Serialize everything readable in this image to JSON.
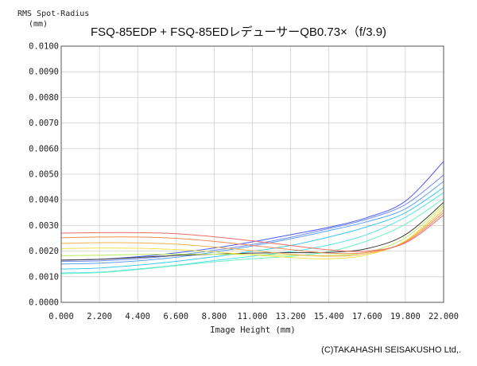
{
  "chart_data": {
    "type": "line",
    "title": "FSQ-85EDP + FSQ-85EDレデューサーQB0.73×（f/3.9)",
    "ylabel_line1": "RMS Spot-Radius",
    "ylabel_line2": "(mm)",
    "xlabel": "Image Height (mm)",
    "credit": "(C)TAKAHASHI SEISAKUSHO Ltd,.",
    "xlim": [
      0,
      22
    ],
    "ylim": [
      0,
      0.01
    ],
    "grid": true,
    "x_ticks": [
      "0.000",
      "2.200",
      "4.400",
      "6.600",
      "8.800",
      "11.000",
      "13.200",
      "15.400",
      "17.600",
      "19.800",
      "22.000"
    ],
    "y_ticks": [
      "0.0000",
      "0.0010",
      "0.0020",
      "0.0030",
      "0.0040",
      "0.0050",
      "0.0060",
      "0.0070",
      "0.0080",
      "0.0090",
      "0.0100"
    ],
    "x": [
      0,
      2.2,
      4.4,
      6.6,
      8.8,
      11,
      13.2,
      15.4,
      17.6,
      19.8,
      22
    ],
    "series": [
      {
        "color": "#4c5cf0",
        "values": [
          0.00165,
          0.00168,
          0.00178,
          0.00193,
          0.00212,
          0.00236,
          0.00264,
          0.00293,
          0.00331,
          0.00395,
          0.0055
        ]
      },
      {
        "color": "#6f8af6",
        "values": [
          0.0016,
          0.00162,
          0.0017,
          0.00184,
          0.00203,
          0.00226,
          0.00254,
          0.00288,
          0.00325,
          0.00382,
          0.00497
        ]
      },
      {
        "color": "#5aa0f5",
        "values": [
          0.0015,
          0.00153,
          0.00162,
          0.00176,
          0.00196,
          0.0022,
          0.00248,
          0.0028,
          0.00315,
          0.00365,
          0.00472
        ]
      },
      {
        "color": "#3cc9ef",
        "values": [
          0.0013,
          0.00134,
          0.00145,
          0.0016,
          0.00178,
          0.00199,
          0.00222,
          0.00255,
          0.00295,
          0.0035,
          0.00448
        ]
      },
      {
        "color": "#52e3ea",
        "values": [
          0.00115,
          0.00118,
          0.0013,
          0.00145,
          0.00163,
          0.0018,
          0.00198,
          0.00224,
          0.00265,
          0.00332,
          0.00428
        ]
      },
      {
        "color": "#6ef0c0",
        "values": [
          0.00112,
          0.00116,
          0.00128,
          0.00143,
          0.00158,
          0.0017,
          0.0018,
          0.00198,
          0.0024,
          0.00305,
          0.00405
        ]
      },
      {
        "color": "#3a3a3a",
        "values": [
          0.00165,
          0.00168,
          0.00175,
          0.00183,
          0.00188,
          0.00192,
          0.00194,
          0.00195,
          0.0021,
          0.00264,
          0.0039
        ]
      },
      {
        "color": "#bdeb5a",
        "values": [
          0.00182,
          0.00184,
          0.00187,
          0.00188,
          0.00188,
          0.00186,
          0.00184,
          0.00183,
          0.00196,
          0.00252,
          0.00381
        ]
      },
      {
        "color": "#f2e14b",
        "values": [
          0.0021,
          0.00212,
          0.00211,
          0.00206,
          0.00197,
          0.00185,
          0.00175,
          0.0017,
          0.00185,
          0.0024,
          0.00372
        ]
      },
      {
        "color": "#f6b24a",
        "values": [
          0.0023,
          0.00233,
          0.00232,
          0.00227,
          0.00216,
          0.00202,
          0.00188,
          0.0018,
          0.0019,
          0.00238,
          0.0036
        ]
      },
      {
        "color": "#f48a55",
        "values": [
          0.00252,
          0.00255,
          0.00255,
          0.0025,
          0.00238,
          0.00222,
          0.00206,
          0.00192,
          0.00195,
          0.00235,
          0.0035
        ]
      },
      {
        "color": "#ef6a6a",
        "values": [
          0.0027,
          0.00272,
          0.00272,
          0.00268,
          0.00256,
          0.0024,
          0.00222,
          0.00205,
          0.002,
          0.00232,
          0.0034
        ]
      }
    ]
  }
}
